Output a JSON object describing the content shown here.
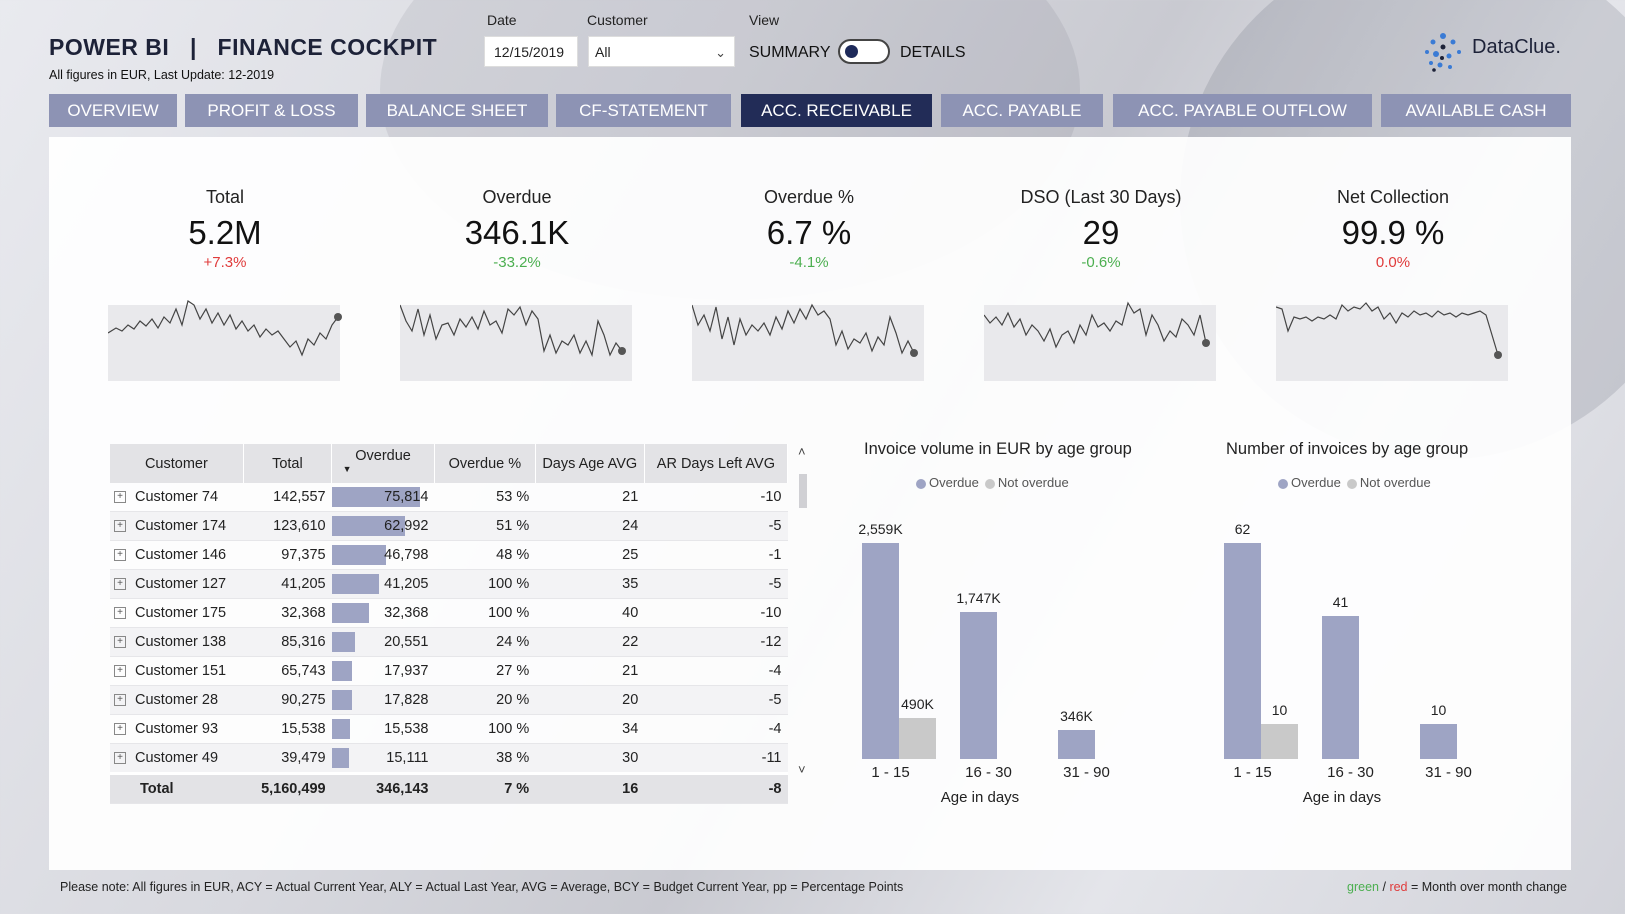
{
  "header": {
    "title": "POWER BI   |   FINANCE COCKPIT",
    "subtitle": "All figures in EUR, Last Update: 12-2019",
    "date_label": "Date",
    "date_value": "12/15/2019",
    "customer_label": "Customer",
    "customer_value": "All",
    "view_label": "View",
    "view_left": "SUMMARY",
    "view_right": "DETAILS",
    "logo_text": "DataClue."
  },
  "tabs": [
    {
      "label": "OVERVIEW",
      "active": false
    },
    {
      "label": "PROFIT & LOSS",
      "active": false
    },
    {
      "label": "BALANCE SHEET",
      "active": false
    },
    {
      "label": "CF-STATEMENT",
      "active": false
    },
    {
      "label": "ACC. RECEIVABLE",
      "active": true
    },
    {
      "label": "ACC. PAYABLE",
      "active": false
    },
    {
      "label": "ACC. PAYABLE OUTFLOW",
      "active": false
    },
    {
      "label": "AVAILABLE CASH",
      "active": false
    }
  ],
  "kpis": [
    {
      "label": "Total",
      "value": "5.2M",
      "delta": "+7.3%",
      "delta_color": "#e03b3b"
    },
    {
      "label": "Overdue",
      "value": "346.1K",
      "delta": "-33.2%",
      "delta_color": "#4caf50"
    },
    {
      "label": "Overdue %",
      "value": "6.7 %",
      "delta": "-4.1%",
      "delta_color": "#4caf50"
    },
    {
      "label": "DSO (Last 30 Days)",
      "value": "29",
      "delta": "-0.6%",
      "delta_color": "#4caf50"
    },
    {
      "label": "Net Collection",
      "value": "99.9 %",
      "delta": "0.0%",
      "delta_color": "#e03b3b"
    }
  ],
  "table": {
    "headers": [
      "Customer",
      "Total",
      "Overdue",
      "Overdue %",
      "Days Age AVG",
      "AR Days Left AVG"
    ],
    "rows": [
      {
        "customer": "Customer 74",
        "total": "142,557",
        "overdue": "75,814",
        "overdue_num": 75814,
        "pct": "53 %",
        "days": "21",
        "left": "-10"
      },
      {
        "customer": "Customer 174",
        "total": "123,610",
        "overdue": "62,992",
        "overdue_num": 62992,
        "pct": "51 %",
        "days": "24",
        "left": "-5"
      },
      {
        "customer": "Customer 146",
        "total": "97,375",
        "overdue": "46,798",
        "overdue_num": 46798,
        "pct": "48 %",
        "days": "25",
        "left": "-1"
      },
      {
        "customer": "Customer 127",
        "total": "41,205",
        "overdue": "41,205",
        "overdue_num": 41205,
        "pct": "100 %",
        "days": "35",
        "left": "-5"
      },
      {
        "customer": "Customer 175",
        "total": "32,368",
        "overdue": "32,368",
        "overdue_num": 32368,
        "pct": "100 %",
        "days": "40",
        "left": "-10"
      },
      {
        "customer": "Customer 138",
        "total": "85,316",
        "overdue": "20,551",
        "overdue_num": 20551,
        "pct": "24 %",
        "days": "22",
        "left": "-12"
      },
      {
        "customer": "Customer 151",
        "total": "65,743",
        "overdue": "17,937",
        "overdue_num": 17937,
        "pct": "27 %",
        "days": "21",
        "left": "-4"
      },
      {
        "customer": "Customer 28",
        "total": "90,275",
        "overdue": "17,828",
        "overdue_num": 17828,
        "pct": "20 %",
        "days": "20",
        "left": "-5"
      },
      {
        "customer": "Customer 93",
        "total": "15,538",
        "overdue": "15,538",
        "overdue_num": 15538,
        "pct": "100 %",
        "days": "34",
        "left": "-4"
      },
      {
        "customer": "Customer 49",
        "total": "39,479",
        "overdue": "15,111",
        "overdue_num": 15111,
        "pct": "38 %",
        "days": "30",
        "left": "-11"
      }
    ],
    "total": {
      "customer": "Total",
      "total": "5,160,499",
      "overdue": "346,143",
      "pct": "7 %",
      "days": "16",
      "left": "-8"
    }
  },
  "chart_data": [
    {
      "type": "bar",
      "title": "Invoice volume in EUR by age group",
      "xlabel": "Age in days",
      "categories": [
        "1 - 15",
        "16 - 30",
        "31 - 90"
      ],
      "series": [
        {
          "name": "Overdue",
          "values": [
            2559,
            1747,
            346
          ],
          "labels": [
            "2,559K",
            "1,747K",
            "346K"
          ],
          "color": "#9ea4c4"
        },
        {
          "name": "Not overdue",
          "values": [
            490,
            0,
            0
          ],
          "labels": [
            "490K",
            "",
            ""
          ],
          "color": "#c9c9c9"
        }
      ]
    },
    {
      "type": "bar",
      "title": "Number of invoices by age group",
      "xlabel": "Age in days",
      "categories": [
        "1 - 15",
        "16 - 30",
        "31 - 90"
      ],
      "series": [
        {
          "name": "Overdue",
          "values": [
            62,
            41,
            10
          ],
          "labels": [
            "62",
            "41",
            "10"
          ],
          "color": "#9ea4c4"
        },
        {
          "name": "Not overdue",
          "values": [
            10,
            0,
            0
          ],
          "labels": [
            "10",
            "",
            ""
          ],
          "color": "#c9c9c9"
        }
      ]
    }
  ],
  "footer": {
    "note": "Please note: All figures in EUR, ACY = Actual Current Year, ALY = Actual Last Year, AVG = Average, BCY = Budget Current Year, pp = Percentage Points",
    "legend_green": "green",
    "legend_sep": " / ",
    "legend_red": "red",
    "legend_rest": " = Month over month change"
  }
}
